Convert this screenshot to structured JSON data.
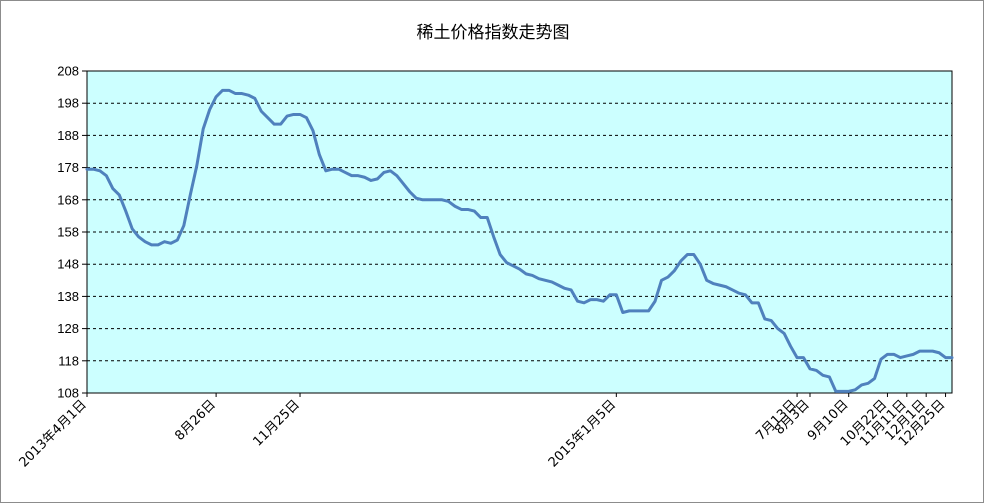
{
  "chart_data": {
    "type": "line",
    "title": "稀土价格指数走势图",
    "xlabel": "",
    "ylabel": "",
    "ylim": [
      108,
      208
    ],
    "yticks": [
      108,
      118,
      128,
      138,
      148,
      158,
      168,
      178,
      188,
      198,
      208
    ],
    "grid": "horizontal dashed",
    "legend": "none",
    "colors": {
      "plot_background": "#ccffff",
      "line": "#4f81bd",
      "gridline": "#000000",
      "frame": "#8c8c8c"
    },
    "x_tick_labels": [
      {
        "label": "2013年4月1日",
        "index": 0
      },
      {
        "label": "8月26日",
        "index": 20
      },
      {
        "label": "11月25日",
        "index": 33
      },
      {
        "label": "2015年1月5日",
        "index": 82
      },
      {
        "label": "7月13日",
        "index": 110
      },
      {
        "label": "8月3日",
        "index": 112
      },
      {
        "label": "9月10日",
        "index": 118
      },
      {
        "label": "10月22日",
        "index": 124
      },
      {
        "label": "11月11日",
        "index": 127
      },
      {
        "label": "12月1日",
        "index": 130
      },
      {
        "label": "12月25日",
        "index": 133
      }
    ],
    "series": [
      {
        "values": [
          177.5,
          177.5,
          177,
          175.5,
          171.5,
          169.5,
          164.5,
          159,
          156.5,
          155,
          154,
          154,
          155,
          154.5,
          155.5,
          160,
          169.5,
          178.5,
          190,
          196,
          200,
          202,
          202,
          201,
          201,
          200.5,
          199.5,
          195.5,
          193.5,
          191.5,
          191.5,
          194,
          194.5,
          194.5,
          193.5,
          189.5,
          182,
          177,
          177.5,
          177.5,
          176.5,
          175.5,
          175.5,
          175,
          174,
          174.5,
          176.5,
          177,
          175.5,
          173,
          170.5,
          168.5,
          168,
          168,
          168,
          168,
          167.5,
          166,
          165,
          165,
          164.5,
          162.5,
          162.5,
          156.5,
          151,
          148.5,
          147.5,
          146.5,
          145,
          144.5,
          143.5,
          143,
          142.5,
          141.5,
          140.5,
          140,
          136.5,
          136,
          137,
          137,
          136.5,
          138.5,
          138.5,
          133,
          133.5,
          133.5,
          133.5,
          133.5,
          136.5,
          143,
          144,
          146,
          149,
          151,
          151,
          148,
          143,
          142,
          141.5,
          141,
          140,
          139,
          138.5,
          136,
          136,
          131,
          130.5,
          128,
          126.5,
          122.5,
          119,
          119,
          115.5,
          115,
          113.5,
          113,
          108.5,
          108.5,
          108.5,
          109,
          110.5,
          111,
          112.5,
          118.5,
          120,
          120,
          119,
          119.5,
          120,
          121,
          121,
          121,
          120.5,
          119,
          119
        ]
      }
    ]
  }
}
